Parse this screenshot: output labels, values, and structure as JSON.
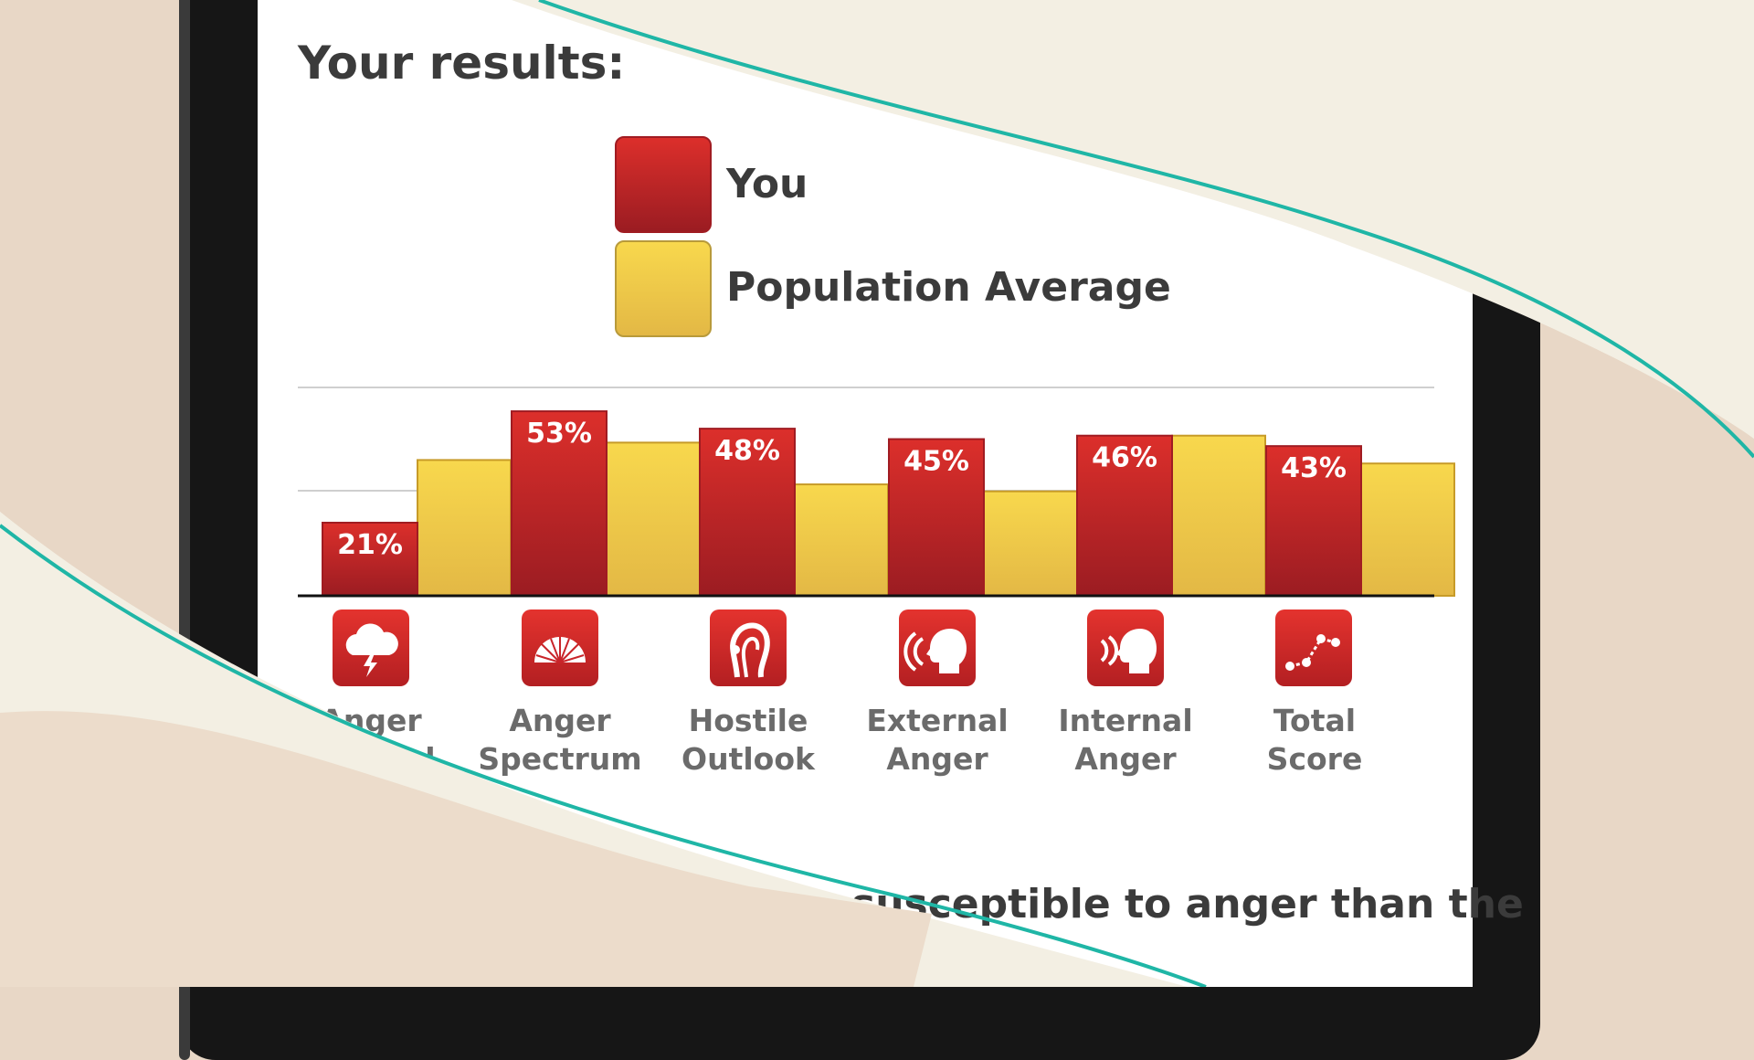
{
  "results_title": "Your results:",
  "legend": [
    {
      "label": "You",
      "color": "#c9252a"
    },
    {
      "label": "Population Average",
      "color": "#f0cf4c"
    }
  ],
  "footer_text": "susceptible to anger than the",
  "chart_data": {
    "type": "bar",
    "categories": [
      "Anger Arousal",
      "Anger Spectrum",
      "Hostile Outlook",
      "External Anger",
      "Internal Anger",
      "Total Score"
    ],
    "category_lines": [
      [
        "Anger",
        "Arousal"
      ],
      [
        "Anger",
        "Spectrum"
      ],
      [
        "Hostile",
        "Outlook"
      ],
      [
        "External",
        "Anger"
      ],
      [
        "Internal",
        "Anger"
      ],
      [
        "Total",
        "Score"
      ]
    ],
    "category_icons": [
      "storm-cloud-icon",
      "spectrum-gauge-icon",
      "hostile-outlook-icon",
      "external-anger-head-icon",
      "internal-anger-head-icon",
      "total-score-graph-icon"
    ],
    "series": [
      {
        "name": "You",
        "values": [
          21,
          53,
          48,
          45,
          46,
          43
        ],
        "labels": [
          "21%",
          "53%",
          "48%",
          "45%",
          "46%",
          "43%"
        ],
        "color": "#c9252a"
      },
      {
        "name": "Population Average",
        "values": [
          39,
          44,
          32,
          30,
          46,
          38
        ],
        "color": "#f0cf4c"
      }
    ],
    "ylim": [
      0,
      68
    ],
    "grid": true
  }
}
